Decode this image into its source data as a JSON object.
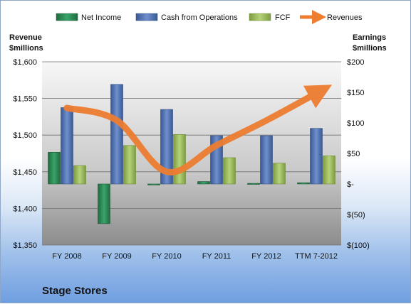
{
  "chart_data": {
    "type": "bar",
    "title": "Stage Stores",
    "categories": [
      "FY 2008",
      "FY 2009",
      "FY 2010",
      "FY 2011",
      "FY 2012",
      "TTM 7-2012"
    ],
    "series": [
      {
        "name": "Net Income",
        "axis": "right",
        "color": "#2e8b57",
        "values": [
          52,
          -65,
          0,
          4,
          1,
          2
        ]
      },
      {
        "name": "Cash from Operations",
        "axis": "right",
        "color": "#4f6fae",
        "values": [
          125,
          163,
          122,
          79,
          79,
          91
        ]
      },
      {
        "name": "FCF",
        "axis": "right",
        "color": "#9bbb59",
        "values": [
          30,
          63,
          81,
          43,
          34,
          46
        ]
      },
      {
        "name": "Revenues",
        "axis": "left",
        "type": "line",
        "color": "#ed7d31",
        "values": [
          1537,
          1520,
          1450,
          1486,
          1520,
          1557
        ]
      }
    ],
    "left_axis": {
      "title": "Revenue $millions",
      "title_lines": [
        "Revenue",
        "$millions"
      ],
      "min": 1350,
      "max": 1600,
      "ticks": [
        1350,
        1400,
        1450,
        1500,
        1550,
        1600
      ],
      "tick_labels": [
        "$1,350",
        "$1,400",
        "$1,450",
        "$1,500",
        "$1,550",
        "$1,600"
      ]
    },
    "right_axis": {
      "title": "Earnings $millions",
      "title_lines": [
        "Earnings",
        "$millions"
      ],
      "min": -100,
      "max": 200,
      "ticks": [
        -100,
        -50,
        0,
        50,
        100,
        150,
        200
      ],
      "tick_labels": [
        "$(100)",
        "$(50)",
        "$-",
        "$50",
        "$100",
        "$150",
        "$200"
      ]
    },
    "legend": {
      "position": "top",
      "entries": [
        "Net Income",
        "Cash from Operations",
        "FCF",
        "Revenues"
      ]
    },
    "grid": true
  },
  "colors": {
    "net_income": "#2e8b57",
    "cash_from_operations": "#4f6fae",
    "fcf": "#9bbb59",
    "revenues": "#ed7d31",
    "plot_background_top": "#f7f7f7",
    "plot_background_bottom": "#8c8c8c"
  }
}
